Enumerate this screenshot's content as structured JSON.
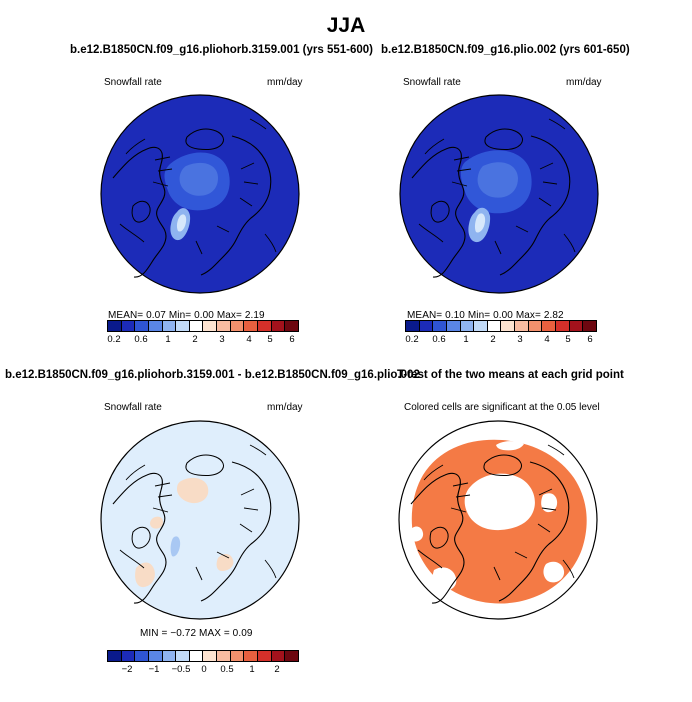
{
  "title": "JJA",
  "colors": {
    "deep_blue": "#1c2bb8",
    "mid_blue": "#3157d8",
    "light_blue": "#8fb4f0",
    "very_light_blue": "#dfeefc",
    "peach": "#f8dcc6",
    "orange": "#f47a45",
    "white": "#ffffff",
    "black": "#000000"
  },
  "chart_data": [
    {
      "type": "heatmap",
      "title": "b.e12.B1850CN.f09_g16.pliohorb.3159.001 (yrs 551-600)",
      "left_label": "Snowfall rate",
      "right_label": "mm/day",
      "stats": "MEAN=    0.07    Min=    0.00    Max=    2.19",
      "colorbar": {
        "colors": [
          "#0a1a8c",
          "#1c2bb8",
          "#2f55d3",
          "#5a86e6",
          "#8fb4f0",
          "#c2dbf8",
          "#ffffff",
          "#fde3d0",
          "#f9bca1",
          "#f3916d",
          "#e9603f",
          "#d4302a",
          "#a3121c",
          "#6d0710"
        ],
        "labels": [
          "0.2",
          "0.6",
          "1",
          "2",
          "3",
          "4",
          "5",
          "6"
        ]
      }
    },
    {
      "type": "heatmap",
      "title": "b.e12.B1850CN.f09_g16.plio.002 (yrs 601-650)",
      "left_label": "Snowfall rate",
      "right_label": "mm/day",
      "stats": "MEAN=    0.10    Min=    0.00    Max=    2.82",
      "colorbar": {
        "colors": [
          "#0a1a8c",
          "#1c2bb8",
          "#2f55d3",
          "#5a86e6",
          "#8fb4f0",
          "#c2dbf8",
          "#ffffff",
          "#fde3d0",
          "#f9bca1",
          "#f3916d",
          "#e9603f",
          "#d4302a",
          "#a3121c",
          "#6d0710"
        ],
        "labels": [
          "0.2",
          "0.6",
          "1",
          "2",
          "3",
          "4",
          "5",
          "6"
        ]
      }
    },
    {
      "type": "heatmap",
      "title": "b.e12.B1850CN.f09_g16.pliohorb.3159.001 - b.e12.B1850CN.f09_g16.plio.002",
      "left_label": "Snowfall rate",
      "right_label": "mm/day",
      "stats": "MIN =   −0.72  MAX =     0.09",
      "colorbar": {
        "colors": [
          "#0a1a8c",
          "#1c2bb8",
          "#2f55d3",
          "#5a86e6",
          "#8fb4f0",
          "#c2dbf8",
          "#ffffff",
          "#fde3d0",
          "#f9bca1",
          "#f3916d",
          "#e9603f",
          "#d4302a",
          "#a3121c",
          "#6d0710"
        ],
        "labels": [
          "−2",
          "−1",
          "−0.5",
          "0",
          "0.5",
          "1",
          "2"
        ]
      }
    },
    {
      "type": "heatmap",
      "title": "T-test of the two means at each grid point",
      "subtitle": "Colored cells are significant at the 0.05 level"
    }
  ]
}
